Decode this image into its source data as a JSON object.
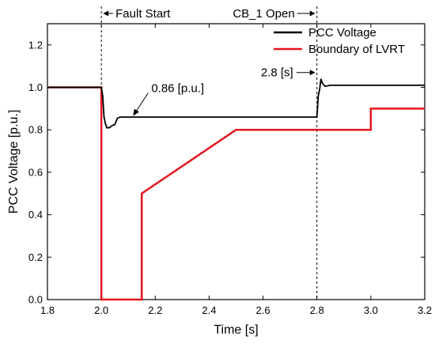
{
  "chart_data": {
    "type": "line",
    "title": "",
    "xlabel": "Time [s]",
    "ylabel": "PCC Voltage [p.u.]",
    "xlim": [
      1.8,
      3.2
    ],
    "ylim": [
      0.0,
      1.3
    ],
    "xticks": [
      "1.8",
      "2.0",
      "2.2",
      "2.4",
      "2.6",
      "2.8",
      "3.0",
      "3.2"
    ],
    "yticks": [
      "0.0",
      "0.2",
      "0.4",
      "0.6",
      "0.8",
      "1.0",
      "1.2"
    ],
    "grid": false,
    "legend_position": "top-right",
    "series": [
      {
        "name": "PCC Voltage",
        "color": "#000000",
        "x": [
          1.8,
          2.0,
          2.005,
          2.01,
          2.015,
          2.02,
          2.03,
          2.04,
          2.05,
          2.06,
          2.07,
          2.1,
          2.3,
          2.5,
          2.7,
          2.79,
          2.8,
          2.802,
          2.805,
          2.81,
          2.815,
          2.82,
          2.83,
          2.85,
          2.9,
          3.0,
          3.1,
          3.2
        ],
        "y": [
          1.0,
          1.0,
          0.96,
          0.86,
          0.83,
          0.81,
          0.81,
          0.82,
          0.825,
          0.855,
          0.86,
          0.86,
          0.86,
          0.86,
          0.86,
          0.86,
          0.86,
          0.9,
          0.96,
          0.99,
          1.04,
          1.02,
          1.005,
          1.01,
          1.01,
          1.01,
          1.01,
          1.01
        ]
      },
      {
        "name": "Boundary of LVRT",
        "color": "#e8141c",
        "x": [
          1.8,
          2.0,
          2.0,
          2.15,
          2.15,
          2.5,
          3.0,
          3.0,
          3.2
        ],
        "y": [
          1.0,
          1.0,
          0.0,
          0.0,
          0.5,
          0.8,
          0.8,
          0.9,
          0.9
        ]
      }
    ],
    "markers": [
      {
        "x": 2.0,
        "label": "Fault Start"
      },
      {
        "x": 2.8,
        "label": "CB_1 Open"
      }
    ],
    "annotations": [
      {
        "text": "0.86 [p.u.]",
        "x": 2.115,
        "y": 0.862
      },
      {
        "text": "2.8 [s]",
        "x": 2.8,
        "y": 1.07
      }
    ]
  }
}
